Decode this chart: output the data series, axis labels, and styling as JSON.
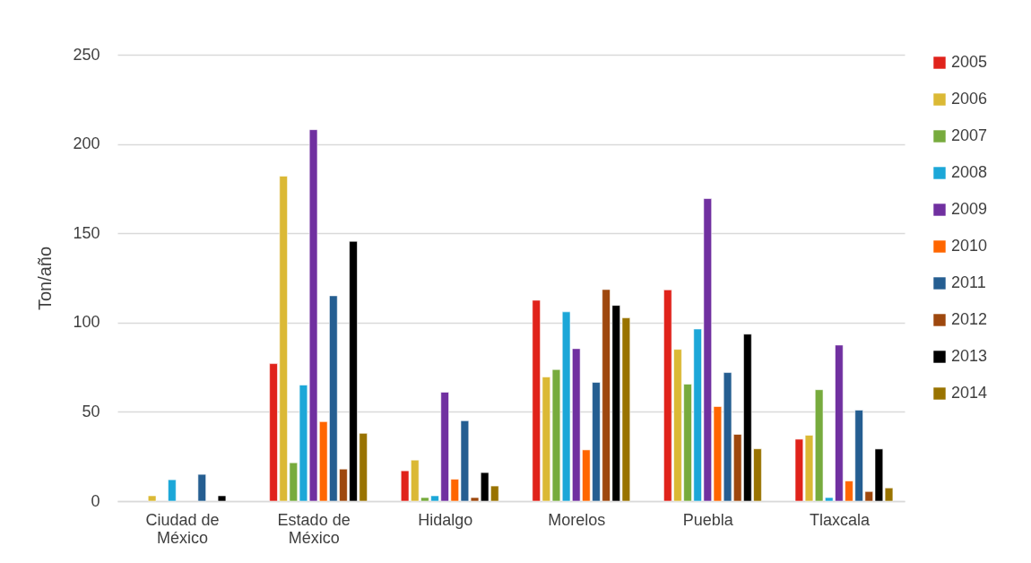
{
  "chart_data": {
    "type": "bar",
    "ylabel": "Ton/año",
    "categories": [
      "Ciudad de México",
      "Estado de México",
      "Hidalgo",
      "Morelos",
      "Puebla",
      "Tlaxcala"
    ],
    "series": [
      {
        "name": "2005",
        "color": "#e0231b",
        "values": [
          null,
          77,
          17,
          112.5,
          118.3,
          34.7
        ]
      },
      {
        "name": "2006",
        "color": "#dbb935",
        "values": [
          3,
          182,
          23,
          69.5,
          85,
          36.9
        ]
      },
      {
        "name": "2007",
        "color": "#77ab3d",
        "values": [
          null,
          21.5,
          2,
          73.7,
          65.5,
          62.4
        ]
      },
      {
        "name": "2008",
        "color": "#1ca7d8",
        "values": [
          12,
          65,
          3,
          106,
          96.4,
          2
        ]
      },
      {
        "name": "2009",
        "color": "#7030a0",
        "values": [
          null,
          208,
          61,
          85.4,
          169.4,
          87.4
        ]
      },
      {
        "name": "2010",
        "color": "#ff6600",
        "values": [
          null,
          44.5,
          12.3,
          28.7,
          53,
          11.3
        ]
      },
      {
        "name": "2011",
        "color": "#255e91",
        "values": [
          15,
          115,
          45,
          66.5,
          72,
          51
        ]
      },
      {
        "name": "2012",
        "color": "#9e480e",
        "values": [
          null,
          18,
          2,
          118.5,
          37.4,
          5.4
        ]
      },
      {
        "name": "2013",
        "color": "#000000",
        "values": [
          3,
          145.5,
          16,
          109.6,
          93.5,
          29.2
        ]
      },
      {
        "name": "2014",
        "color": "#997300",
        "values": [
          null,
          38,
          8.5,
          102.6,
          29.3,
          7.4
        ]
      }
    ],
    "ylim": [
      0,
      250
    ],
    "yticks": [
      0,
      50,
      100,
      150,
      200,
      250
    ],
    "grid": "y",
    "legend": "right"
  }
}
